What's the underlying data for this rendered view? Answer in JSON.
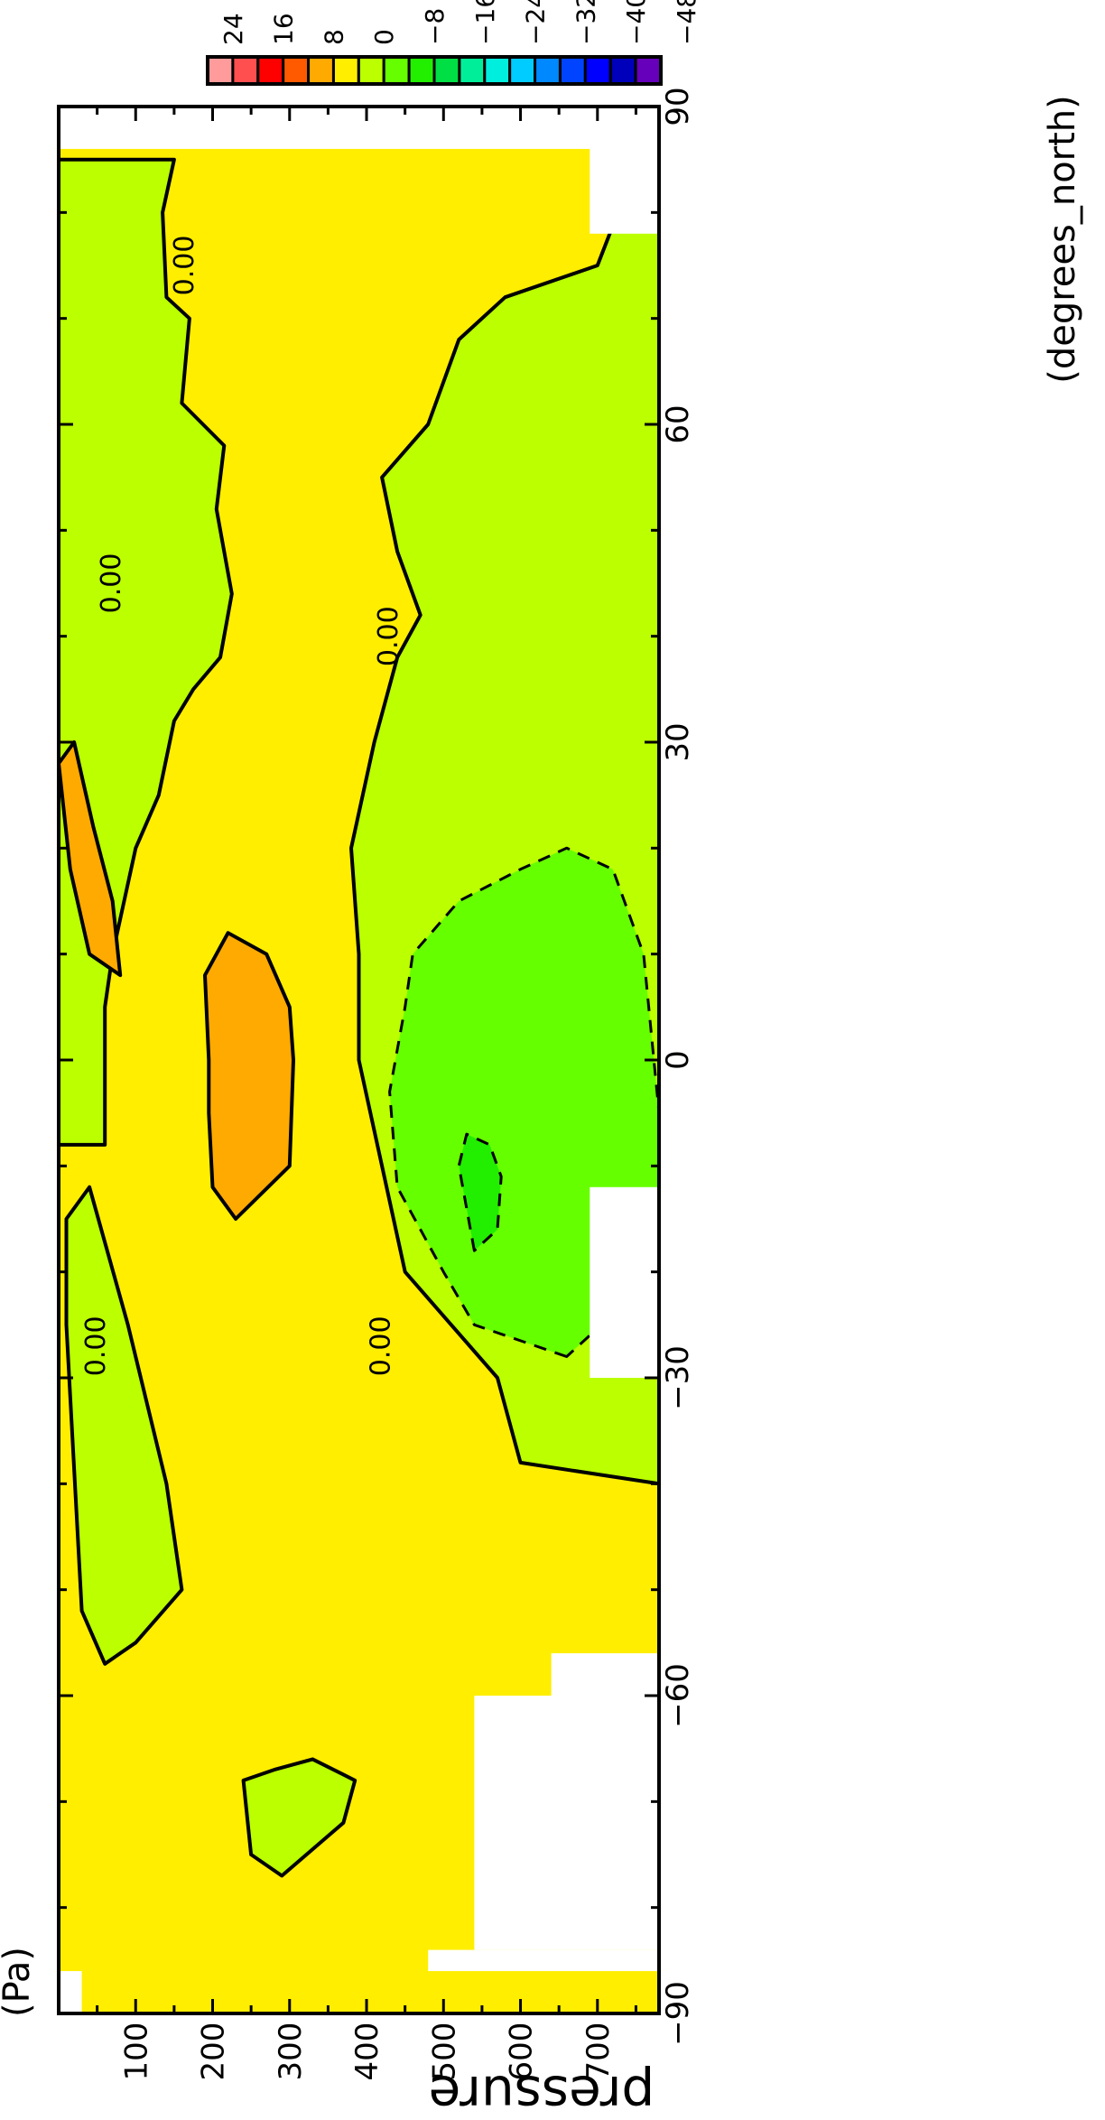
{
  "chart_data": {
    "type": "heatmap",
    "title": "",
    "xlabel": "(degrees_north)",
    "ylabel": "pressure",
    "yunits": "(Pa)",
    "xlim": [
      -90,
      90
    ],
    "ylim": [
      780,
      0
    ],
    "xticks": [
      {
        "value": -90,
        "label": "−90"
      },
      {
        "value": -60,
        "label": "−60"
      },
      {
        "value": -30,
        "label": "−30"
      },
      {
        "value": 0,
        "label": "0"
      },
      {
        "value": 30,
        "label": "30"
      },
      {
        "value": 60,
        "label": "60"
      },
      {
        "value": 90,
        "label": "90"
      }
    ],
    "yticks": [
      {
        "value": 100,
        "label": "100"
      },
      {
        "value": 200,
        "label": "200"
      },
      {
        "value": 300,
        "label": "300"
      },
      {
        "value": 400,
        "label": "400"
      },
      {
        "value": 500,
        "label": "500"
      },
      {
        "value": 600,
        "label": "600"
      },
      {
        "value": 700,
        "label": "700"
      }
    ],
    "colorbar": {
      "labels": [
        "24",
        "16",
        "8",
        "0",
        "−8",
        "−16",
        "−24",
        "−32",
        "−40",
        "−48"
      ],
      "colors": [
        "#ff9b9b",
        "#ff4f4f",
        "#ff0000",
        "#ff5a00",
        "#ffaa00",
        "#ffee00",
        "#bbff00",
        "#66ff00",
        "#22ee00",
        "#00e044",
        "#00ee99",
        "#00eedd",
        "#00ccff",
        "#0088ff",
        "#0044ff",
        "#0000ff",
        "#0000bb",
        "#6600bb"
      ]
    },
    "background_level": "0 to 4",
    "regions": [
      {
        "level": "−4 to 0",
        "color": "#bbff00",
        "desc": "upper troposphere north of 25N",
        "poly": [
          [
            85,
            0
          ],
          [
            85,
            150
          ],
          [
            80,
            135
          ],
          [
            72,
            140
          ],
          [
            70,
            170
          ],
          [
            62,
            160
          ],
          [
            58,
            215
          ],
          [
            52,
            205
          ],
          [
            44,
            225
          ],
          [
            38,
            210
          ],
          [
            35,
            175
          ],
          [
            32,
            150
          ],
          [
            25,
            130
          ],
          [
            20,
            100
          ],
          [
            15,
            85
          ],
          [
            10,
            70
          ],
          [
            5,
            60
          ],
          [
            0,
            60
          ],
          [
            -5,
            60
          ],
          [
            -8,
            60
          ],
          [
            -8,
            0
          ]
        ]
      },
      {
        "level": "−4 to 0",
        "color": "#bbff00",
        "desc": "upper-level southern pocket",
        "poly": [
          [
            -15,
            10
          ],
          [
            -12,
            40
          ],
          [
            -25,
            90
          ],
          [
            -40,
            140
          ],
          [
            -50,
            160
          ],
          [
            -55,
            100
          ],
          [
            -57,
            60
          ],
          [
            -52,
            30
          ],
          [
            -25,
            10
          ]
        ]
      },
      {
        "level": "−4 to 0",
        "color": "#bbff00",
        "desc": "lower pocket near 70S",
        "poly": [
          [
            -68,
            240
          ],
          [
            -75,
            250
          ],
          [
            -77,
            290
          ],
          [
            -72,
            370
          ],
          [
            -68,
            385
          ],
          [
            -66,
            330
          ],
          [
            -67,
            280
          ]
        ]
      },
      {
        "level": "−4 to 0",
        "color": "#bbff00",
        "desc": "lower-troposphere band 30S to 40N",
        "poly": [
          [
            -40,
            780
          ],
          [
            -38,
            600
          ],
          [
            -30,
            570
          ],
          [
            -25,
            510
          ],
          [
            -20,
            450
          ],
          [
            -10,
            420
          ],
          [
            0,
            390
          ],
          [
            10,
            390
          ],
          [
            20,
            380
          ],
          [
            30,
            410
          ],
          [
            38,
            440
          ],
          [
            42,
            470
          ],
          [
            48,
            440
          ],
          [
            55,
            420
          ],
          [
            60,
            480
          ],
          [
            68,
            520
          ],
          [
            72,
            580
          ],
          [
            75,
            700
          ],
          [
            90,
            780
          ]
        ]
      },
      {
        "level": "−8 to −4",
        "color": "#66ff00",
        "desc": "tropical lower-troposphere minimum",
        "poly": [
          [
            -28,
            660
          ],
          [
            -25,
            540
          ],
          [
            -20,
            500
          ],
          [
            -12,
            440
          ],
          [
            -3,
            430
          ],
          [
            5,
            450
          ],
          [
            10,
            460
          ],
          [
            15,
            520
          ],
          [
            18,
            600
          ],
          [
            20,
            660
          ],
          [
            18,
            720
          ],
          [
            10,
            760
          ],
          [
            -5,
            780
          ],
          [
            -20,
            780
          ]
        ]
      },
      {
        "level": "−12 to −8",
        "color": "#22ee00",
        "desc": "inner core",
        "poly": [
          [
            -18,
            540
          ],
          [
            -10,
            520
          ],
          [
            -7,
            530
          ],
          [
            -8,
            560
          ],
          [
            -11,
            575
          ],
          [
            -16,
            570
          ]
        ]
      },
      {
        "level": "4 to 8",
        "color": "#ffaa00",
        "desc": "upper-level maximum near 15N",
        "poly": [
          [
            28,
            0
          ],
          [
            30,
            20
          ],
          [
            22,
            45
          ],
          [
            15,
            70
          ],
          [
            8,
            80
          ],
          [
            10,
            40
          ],
          [
            18,
            15
          ]
        ]
      },
      {
        "level": "4 to 8",
        "color": "#ffaa00",
        "desc": "mid-level maximum near equator",
        "poly": [
          [
            -15,
            230
          ],
          [
            -10,
            300
          ],
          [
            0,
            305
          ],
          [
            5,
            300
          ],
          [
            10,
            270
          ],
          [
            12,
            220
          ],
          [
            8,
            190
          ],
          [
            0,
            195
          ],
          [
            -5,
            195
          ],
          [
            -12,
            200
          ]
        ]
      }
    ],
    "contour_labels": [
      {
        "text": "0.00",
        "lat": -27,
        "p": 60
      },
      {
        "text": "0.00",
        "lat": -27,
        "p": 430
      },
      {
        "text": "0.00",
        "lat": 45,
        "p": 80
      },
      {
        "text": "0.00",
        "lat": 40,
        "p": 440
      },
      {
        "text": "0.00",
        "lat": 75,
        "p": 175
      }
    ],
    "missing": [
      {
        "lat": [
          -92,
          -86
        ],
        "p": [
          0,
          30
        ]
      },
      {
        "lat": [
          -86,
          -84
        ],
        "p": [
          480,
          780
        ]
      },
      {
        "lat": [
          -84,
          -60
        ],
        "p": [
          540,
          780
        ]
      },
      {
        "lat": [
          -60,
          -56
        ],
        "p": [
          640,
          780
        ]
      },
      {
        "lat": [
          -30,
          -12
        ],
        "p": [
          690,
          780
        ]
      },
      {
        "lat": [
          78,
          92
        ],
        "p": [
          690,
          780
        ]
      },
      {
        "lat": [
          86,
          92
        ],
        "p": [
          0,
          780
        ]
      }
    ]
  }
}
